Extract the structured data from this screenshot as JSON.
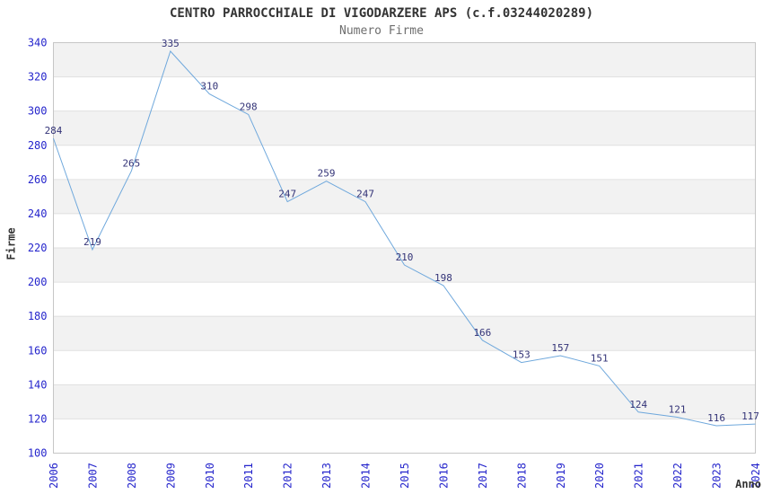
{
  "chart_data": {
    "type": "line",
    "title": "CENTRO PARROCCHIALE DI VIGODARZERE APS (c.f.03244020289)",
    "subtitle": "Numero Firme",
    "xlabel": "Anno",
    "ylabel": "Firme",
    "categories": [
      "2006",
      "2007",
      "2008",
      "2009",
      "2010",
      "2011",
      "2012",
      "2013",
      "2014",
      "2015",
      "2016",
      "2017",
      "2018",
      "2019",
      "2020",
      "2021",
      "2022",
      "2023",
      "2024"
    ],
    "values": [
      284,
      219,
      265,
      335,
      310,
      298,
      247,
      259,
      247,
      210,
      198,
      166,
      153,
      157,
      151,
      124,
      121,
      116,
      117
    ],
    "ylim": [
      100,
      340
    ],
    "ytick_step": 20,
    "legend": "none",
    "grid": "horizontal",
    "banded_background": true,
    "data_labels_visible": true
  },
  "colors": {
    "line": "#6fa8dc",
    "axis_tick_label": "#2626cc",
    "data_label": "#333377",
    "title": "#333333",
    "subtitle": "#6e6e6e",
    "axis_title": "#333333",
    "band_fill": "#f2f2f2",
    "gridline": "#e0e0e0",
    "plot_border": "#c6c6c6",
    "background": "#ffffff"
  }
}
